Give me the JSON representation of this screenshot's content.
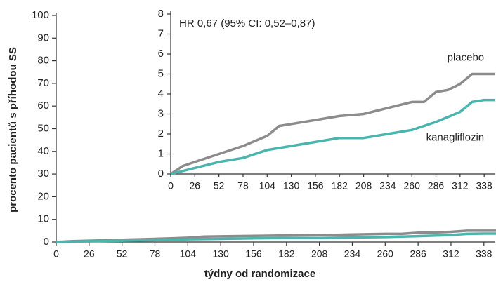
{
  "chart_data": [
    {
      "type": "line",
      "x_label": "týdny od randomizace",
      "y_label": "procento pacientů s příhodou SS",
      "xlim": [
        0,
        347
      ],
      "ylim": [
        0,
        100
      ],
      "xticks": [
        0,
        26,
        52,
        78,
        104,
        130,
        156,
        182,
        208,
        234,
        260,
        286,
        312,
        338
      ],
      "yticks": [
        0,
        10,
        20,
        30,
        40,
        50,
        60,
        70,
        80,
        90,
        100
      ],
      "series": [
        {
          "name": "placebo",
          "color": "#8c8c8c",
          "x": [
            0,
            13,
            26,
            52,
            78,
            104,
            117,
            130,
            156,
            182,
            208,
            234,
            260,
            273,
            286,
            299,
            312,
            325,
            350
          ],
          "values": [
            0,
            0.4,
            0.6,
            1.0,
            1.4,
            1.9,
            2.4,
            2.5,
            2.7,
            2.9,
            3.0,
            3.3,
            3.6,
            3.6,
            4.1,
            4.2,
            4.5,
            5.0,
            5.0
          ]
        },
        {
          "name": "kanagliflozin",
          "color": "#4ab5ad",
          "x": [
            0,
            26,
            52,
            78,
            104,
            130,
            156,
            182,
            208,
            234,
            260,
            286,
            312,
            325,
            338,
            350
          ],
          "values": [
            0,
            0.3,
            0.6,
            0.8,
            1.2,
            1.4,
            1.6,
            1.8,
            1.8,
            2.0,
            2.2,
            2.6,
            3.1,
            3.6,
            3.7,
            3.7
          ]
        }
      ]
    },
    {
      "type": "line",
      "annotations": [
        "HR 0,67 (95% CI: 0,52–0,87)"
      ],
      "xlim": [
        0,
        350
      ],
      "ylim": [
        0,
        8
      ],
      "xticks": [
        0,
        26,
        52,
        78,
        104,
        130,
        156,
        182,
        208,
        234,
        260,
        286,
        312,
        338
      ],
      "yticks": [
        0,
        1,
        2,
        3,
        4,
        5,
        6,
        7,
        8
      ],
      "series": [
        {
          "name": "placebo",
          "color": "#8c8c8c",
          "x": [
            0,
            13,
            26,
            52,
            78,
            104,
            117,
            130,
            156,
            182,
            208,
            234,
            260,
            273,
            286,
            299,
            312,
            325,
            350
          ],
          "values": [
            0,
            0.4,
            0.6,
            1.0,
            1.4,
            1.9,
            2.4,
            2.5,
            2.7,
            2.9,
            3.0,
            3.3,
            3.6,
            3.6,
            4.1,
            4.2,
            4.5,
            5.0,
            5.0
          ]
        },
        {
          "name": "kanagliflozin",
          "color": "#4ab5ad",
          "x": [
            0,
            26,
            52,
            78,
            104,
            130,
            156,
            182,
            208,
            234,
            260,
            286,
            312,
            325,
            338,
            350
          ],
          "values": [
            0,
            0.3,
            0.6,
            0.8,
            1.2,
            1.4,
            1.6,
            1.8,
            1.8,
            2.0,
            2.2,
            2.6,
            3.1,
            3.6,
            3.7,
            3.7
          ]
        }
      ]
    }
  ]
}
